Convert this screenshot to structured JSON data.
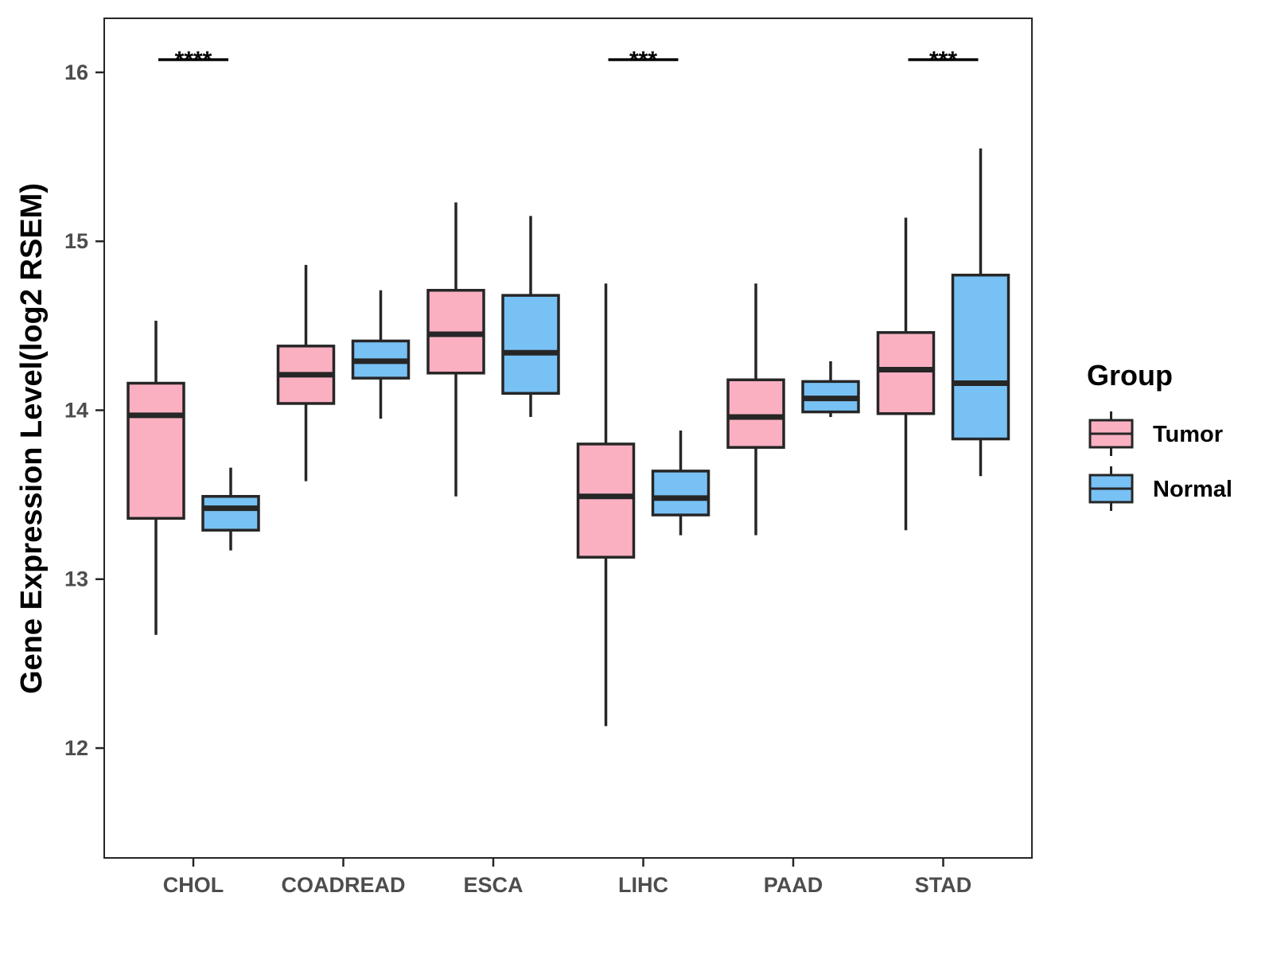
{
  "chart_data": {
    "type": "box",
    "title": "",
    "xlabel": "",
    "ylabel": "Gene Expression Level(log2 RSEM)",
    "ylim": [
      11.35,
      16.32
    ],
    "yticks": [
      12,
      13,
      14,
      15,
      16
    ],
    "grid": false,
    "categories": [
      "CHOL",
      "COADREAD",
      "ESCA",
      "LIHC",
      "PAAD",
      "STAD"
    ],
    "colors": {
      "Tumor": "#FBB0C2",
      "Normal": "#78C1F5",
      "stroke": "#262626"
    },
    "legend": {
      "title": "Group",
      "position": "right",
      "entries": [
        "Tumor",
        "Normal"
      ]
    },
    "series": [
      {
        "name": "Tumor",
        "boxes": [
          {
            "min": 12.67,
            "q1": 13.36,
            "median": 13.97,
            "q3": 14.16,
            "max": 14.53
          },
          {
            "min": 13.58,
            "q1": 14.04,
            "median": 14.21,
            "q3": 14.38,
            "max": 14.86
          },
          {
            "min": 13.49,
            "q1": 14.22,
            "median": 14.45,
            "q3": 14.71,
            "max": 15.23
          },
          {
            "min": 12.13,
            "q1": 13.13,
            "median": 13.49,
            "q3": 13.8,
            "max": 14.75
          },
          {
            "min": 13.26,
            "q1": 13.78,
            "median": 13.96,
            "q3": 14.18,
            "max": 14.75
          },
          {
            "min": 13.29,
            "q1": 13.98,
            "median": 14.24,
            "q3": 14.46,
            "max": 15.14
          }
        ]
      },
      {
        "name": "Normal",
        "boxes": [
          {
            "min": 13.17,
            "q1": 13.29,
            "median": 13.42,
            "q3": 13.49,
            "max": 13.66
          },
          {
            "min": 13.95,
            "q1": 14.19,
            "median": 14.29,
            "q3": 14.41,
            "max": 14.71
          },
          {
            "min": 13.96,
            "q1": 14.1,
            "median": 14.34,
            "q3": 14.68,
            "max": 15.15
          },
          {
            "min": 13.26,
            "q1": 13.38,
            "median": 13.48,
            "q3": 13.64,
            "max": 13.88
          },
          {
            "min": 13.96,
            "q1": 13.99,
            "median": 14.07,
            "q3": 14.17,
            "max": 14.29
          },
          {
            "min": 13.61,
            "q1": 13.83,
            "median": 14.16,
            "q3": 14.8,
            "max": 15.55
          }
        ]
      }
    ],
    "annotations": [
      {
        "category": "CHOL",
        "label": "****"
      },
      {
        "category": "LIHC",
        "label": "***"
      },
      {
        "category": "STAD",
        "label": "***"
      }
    ]
  }
}
